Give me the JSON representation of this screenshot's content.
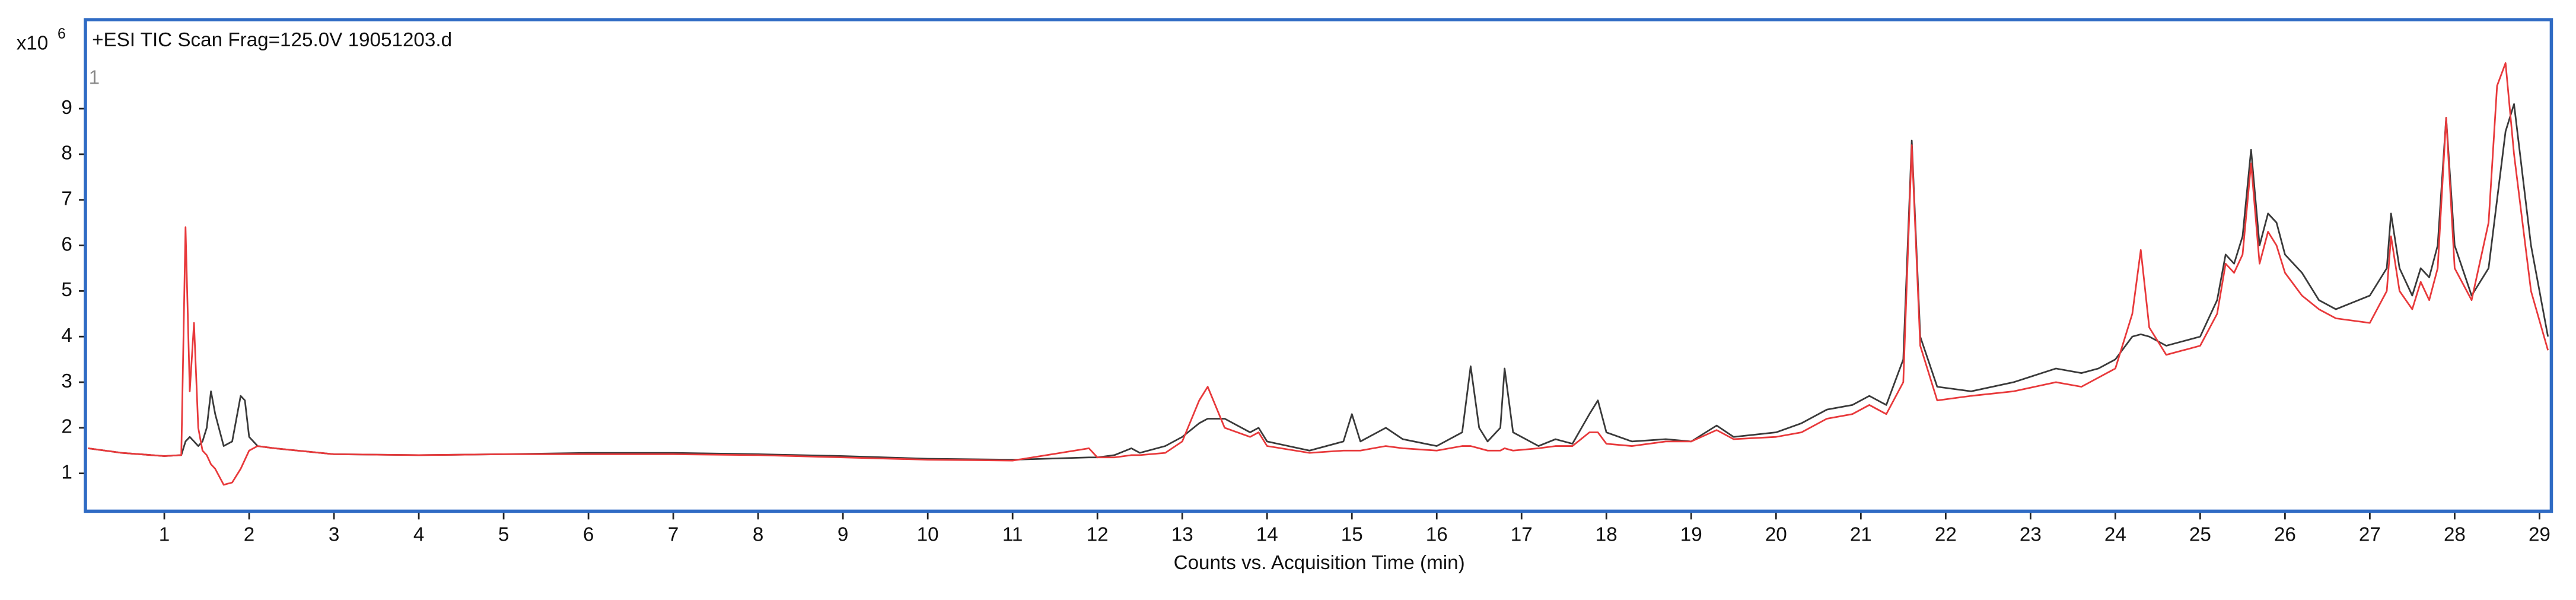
{
  "chart_data": {
    "type": "line",
    "title": "+ESI TIC Scan Frag=125.0V 19051203.d",
    "y_multiplier": "x10",
    "y_exponent": "6",
    "annotation": "1",
    "xlabel": "Counts vs. Acquisition Time (min)",
    "xlim": [
      0.07,
      29.14
    ],
    "ylim": [
      0.17,
      10.95
    ],
    "xticks": [
      1,
      2,
      3,
      4,
      5,
      6,
      7,
      8,
      9,
      10,
      11,
      12,
      13,
      14,
      15,
      16,
      17,
      18,
      19,
      20,
      21,
      22,
      23,
      24,
      25,
      26,
      27,
      28,
      29
    ],
    "yticks": [
      1,
      2,
      3,
      4,
      5,
      6,
      7,
      8,
      9
    ],
    "grid": false,
    "frame_color": "#2f6bc4",
    "x": [
      0.1,
      0.5,
      1.0,
      1.2,
      1.25,
      1.3,
      1.35,
      1.4,
      1.45,
      1.5,
      1.55,
      1.6,
      1.7,
      1.8,
      1.9,
      1.95,
      2.0,
      2.1,
      2.3,
      3,
      4,
      5,
      6,
      7,
      8,
      9,
      10,
      11,
      11.9,
      12.0,
      12.2,
      12.4,
      12.5,
      12.8,
      13.0,
      13.2,
      13.3,
      13.5,
      13.8,
      13.9,
      14.0,
      14.5,
      14.9,
      15.0,
      15.1,
      15.4,
      15.6,
      16.0,
      16.3,
      16.4,
      16.5,
      16.6,
      16.75,
      16.8,
      16.9,
      17.2,
      17.4,
      17.6,
      17.8,
      17.9,
      18.0,
      18.3,
      18.7,
      19.0,
      19.3,
      19.5,
      20.0,
      20.3,
      20.6,
      20.9,
      21.1,
      21.3,
      21.5,
      21.6,
      21.7,
      21.9,
      22.3,
      22.8,
      23.3,
      23.6,
      23.8,
      24.0,
      24.2,
      24.3,
      24.4,
      24.6,
      25.0,
      25.2,
      25.3,
      25.4,
      25.5,
      25.6,
      25.7,
      25.8,
      25.9,
      26.0,
      26.2,
      26.4,
      26.6,
      27.0,
      27.2,
      27.25,
      27.35,
      27.5,
      27.6,
      27.7,
      27.8,
      27.9,
      28.0,
      28.2,
      28.4,
      28.5,
      28.6,
      28.7,
      28.9,
      29.1
    ],
    "series": [
      {
        "color": "#3a3a3a",
        "values": [
          1.55,
          1.45,
          1.38,
          1.4,
          1.7,
          1.8,
          1.7,
          1.6,
          1.7,
          2.0,
          2.8,
          2.3,
          1.6,
          1.7,
          2.7,
          2.6,
          1.8,
          1.6,
          1.55,
          1.42,
          1.4,
          1.42,
          1.45,
          1.45,
          1.42,
          1.38,
          1.32,
          1.3,
          1.35,
          1.35,
          1.4,
          1.55,
          1.45,
          1.6,
          1.8,
          2.1,
          2.2,
          2.2,
          1.9,
          2.0,
          1.7,
          1.5,
          1.7,
          2.3,
          1.7,
          2.0,
          1.75,
          1.6,
          1.9,
          3.35,
          2.0,
          1.7,
          2.0,
          3.3,
          1.9,
          1.6,
          1.75,
          1.65,
          2.3,
          2.6,
          1.9,
          1.7,
          1.75,
          1.7,
          2.05,
          1.8,
          1.9,
          2.1,
          2.4,
          2.5,
          2.7,
          2.5,
          3.5,
          8.3,
          4.0,
          2.9,
          2.8,
          3.0,
          3.3,
          3.2,
          3.3,
          3.5,
          4.0,
          4.05,
          4.0,
          3.8,
          4.0,
          4.8,
          5.8,
          5.6,
          6.2,
          8.1,
          6.0,
          6.7,
          6.5,
          5.8,
          5.4,
          4.8,
          4.6,
          4.9,
          5.5,
          6.7,
          5.5,
          4.9,
          5.5,
          5.3,
          6.0,
          8.8,
          6.0,
          4.9,
          5.5,
          7.0,
          8.5,
          9.1,
          6.0,
          4.0
        ]
      },
      {
        "color": "#e8393b",
        "values": [
          1.55,
          1.45,
          1.38,
          1.4,
          6.4,
          2.8,
          4.3,
          2.0,
          1.5,
          1.4,
          1.2,
          1.1,
          0.75,
          0.8,
          1.1,
          1.3,
          1.5,
          1.6,
          1.55,
          1.42,
          1.4,
          1.42,
          1.42,
          1.42,
          1.4,
          1.35,
          1.3,
          1.28,
          1.55,
          1.35,
          1.35,
          1.4,
          1.4,
          1.45,
          1.7,
          2.6,
          2.9,
          2.0,
          1.8,
          1.9,
          1.6,
          1.45,
          1.5,
          1.5,
          1.5,
          1.6,
          1.55,
          1.5,
          1.6,
          1.6,
          1.55,
          1.5,
          1.5,
          1.55,
          1.5,
          1.55,
          1.6,
          1.6,
          1.9,
          1.9,
          1.65,
          1.6,
          1.7,
          1.7,
          1.95,
          1.75,
          1.8,
          1.9,
          2.2,
          2.3,
          2.5,
          2.3,
          3.0,
          8.2,
          3.8,
          2.6,
          2.7,
          2.8,
          3.0,
          2.9,
          3.1,
          3.3,
          4.5,
          5.9,
          4.2,
          3.6,
          3.8,
          4.5,
          5.6,
          5.4,
          5.8,
          7.8,
          5.6,
          6.3,
          6.0,
          5.4,
          4.9,
          4.6,
          4.4,
          4.3,
          5.0,
          6.2,
          5.0,
          4.6,
          5.2,
          4.8,
          5.5,
          8.8,
          5.5,
          4.8,
          6.5,
          9.5,
          10.0,
          8.0,
          5.0,
          3.7
        ]
      }
    ]
  }
}
